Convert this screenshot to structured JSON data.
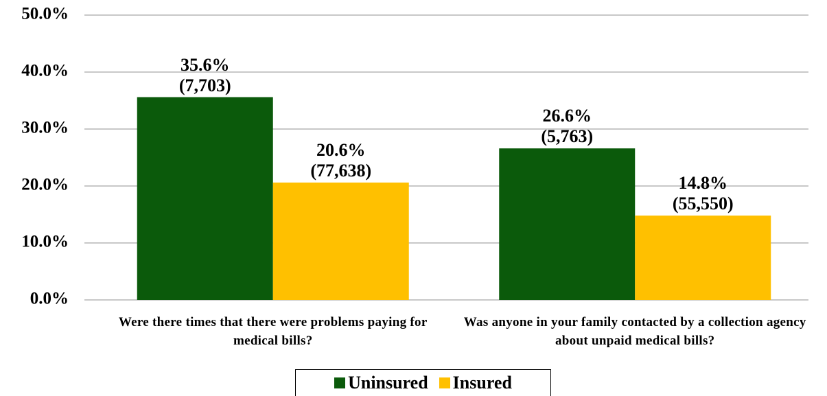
{
  "chart_data": {
    "type": "bar",
    "categories": [
      "Were there times that there were problems paying for medical bills?",
      "Was anyone in your family contacted by a collection agency about unpaid medical bills?"
    ],
    "series": [
      {
        "name": "Uninsured",
        "color": "#0b5a0b",
        "values": [
          35.6,
          26.6
        ],
        "value_labels": [
          "35.6%\n(7,703)",
          "26.6%\n(5,763)"
        ]
      },
      {
        "name": "Insured",
        "color": "#ffc000",
        "values": [
          20.6,
          14.8
        ],
        "value_labels": [
          "20.6%\n(77,638)",
          "14.8%\n(55,550)"
        ]
      }
    ],
    "ylim": [
      0,
      50
    ],
    "yticks": [
      {
        "value": 0,
        "label": "0.0%"
      },
      {
        "value": 10,
        "label": "10.0%"
      },
      {
        "value": 20,
        "label": "20.0%"
      },
      {
        "value": 30,
        "label": "30.0%"
      },
      {
        "value": 40,
        "label": "40.0%"
      },
      {
        "value": 50,
        "label": "50.0%"
      }
    ],
    "grid": true,
    "legend": "bottom"
  }
}
